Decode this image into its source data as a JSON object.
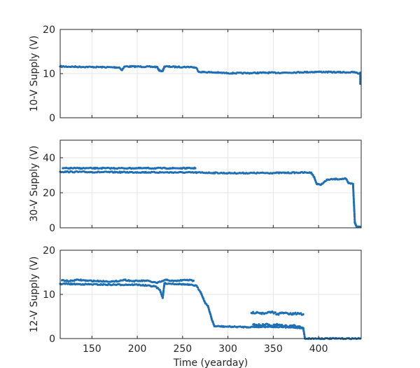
{
  "chart_data": [
    {
      "type": "scatter",
      "title": "",
      "xlabel": "",
      "ylabel": "10-V Supply (V)",
      "xlim": [
        115,
        447
      ],
      "ylim": [
        0,
        20
      ],
      "yticks": [
        "0",
        "10",
        "20"
      ],
      "grid": true,
      "color": "#1f6fb4",
      "series": [
        {
          "points": [
            [
              115,
              11.6
            ],
            [
              150,
              11.5
            ],
            [
              180,
              11.4
            ],
            [
              183,
              10.8
            ],
            [
              186,
              11.6
            ],
            [
              200,
              11.6
            ],
            [
              222,
              11.5
            ],
            [
              224,
              10.7
            ],
            [
              228,
              10.6
            ],
            [
              230,
              11.6
            ],
            [
              245,
              11.5
            ],
            [
              260,
              11.5
            ],
            [
              265,
              11.3
            ],
            [
              268,
              10.4
            ],
            [
              280,
              10.3
            ],
            [
              290,
              10.2
            ],
            [
              300,
              10.1
            ],
            [
              320,
              10.1
            ],
            [
              340,
              10.2
            ],
            [
              360,
              10.2
            ],
            [
              380,
              10.3
            ],
            [
              400,
              10.4
            ],
            [
              420,
              10.3
            ],
            [
              440,
              10.3
            ],
            [
              444,
              10.0
            ],
            [
              446,
              10.2
            ],
            [
              446,
              7.7
            ]
          ]
        }
      ]
    },
    {
      "type": "scatter",
      "title": "",
      "xlabel": "",
      "ylabel": "30-V Supply (V)",
      "xlim": [
        115,
        447
      ],
      "ylim": [
        0,
        50
      ],
      "yticks": [
        "0",
        "20",
        "40"
      ],
      "grid": true,
      "color": "#1f6fb4",
      "series": [
        {
          "points": [
            [
              115,
              32
            ],
            [
              150,
              31.8
            ],
            [
              200,
              31.7
            ],
            [
              250,
              31.6
            ],
            [
              270,
              31.5
            ],
            [
              300,
              31.2
            ],
            [
              350,
              31.3
            ],
            [
              380,
              31.5
            ],
            [
              392,
              31.5
            ],
            [
              395,
              29
            ],
            [
              398,
              25
            ],
            [
              402,
              24.5
            ],
            [
              406,
              26
            ],
            [
              410,
              27.5
            ],
            [
              420,
              27.8
            ],
            [
              430,
              28
            ],
            [
              433,
              25.5
            ],
            [
              438,
              25
            ],
            [
              440,
              3
            ],
            [
              442,
              0.5
            ],
            [
              446,
              0.5
            ]
          ]
        },
        {
          "points": [
            [
              118,
              34
            ],
            [
              125,
              34
            ],
            [
              132,
              34
            ],
            [
              138,
              34
            ],
            [
              143,
              34
            ],
            [
              150,
              34
            ],
            [
              155,
              34
            ],
            [
              160,
              34
            ],
            [
              165,
              34
            ],
            [
              185,
              34
            ],
            [
              190,
              34
            ],
            [
              195,
              34
            ],
            [
              200,
              34
            ],
            [
              205,
              34
            ],
            [
              231,
              34
            ],
            [
              236,
              34
            ],
            [
              240,
              34
            ],
            [
              250,
              34
            ],
            [
              255,
              34
            ],
            [
              260,
              34
            ],
            [
              264,
              34
            ]
          ]
        }
      ]
    },
    {
      "type": "scatter",
      "title": "",
      "xlabel": "Time (yearday)",
      "ylabel": "12-V Supply (V)",
      "xlim": [
        115,
        447
      ],
      "ylim": [
        0,
        20
      ],
      "xticks": [
        "150",
        "200",
        "250",
        "300",
        "350",
        "400"
      ],
      "yticks": [
        "0",
        "10",
        "20"
      ],
      "grid": true,
      "color": "#1f6fb4",
      "series": [
        {
          "points": [
            [
              115,
              12.4
            ],
            [
              140,
              12.3
            ],
            [
              170,
              12.2
            ],
            [
              200,
              12.2
            ],
            [
              220,
              11.8
            ],
            [
              225,
              11
            ],
            [
              228,
              9.2
            ],
            [
              230,
              12.5
            ],
            [
              250,
              12.3
            ],
            [
              265,
              12
            ],
            [
              270,
              10.5
            ],
            [
              275,
              8
            ],
            [
              278,
              7.4
            ],
            [
              282,
              4.5
            ],
            [
              285,
              2.8
            ],
            [
              300,
              2.7
            ],
            [
              320,
              2.6
            ],
            [
              345,
              2.7
            ],
            [
              360,
              2.6
            ],
            [
              383,
              2.4
            ],
            [
              385,
              0
            ],
            [
              400,
              0
            ],
            [
              420,
              0
            ],
            [
              446,
              0
            ]
          ]
        },
        {
          "points": [
            [
              117,
              13.2
            ],
            [
              125,
              13
            ],
            [
              135,
              13.3
            ],
            [
              145,
              13.1
            ],
            [
              160,
              13
            ],
            [
              175,
              12.9
            ],
            [
              186,
              13.3
            ],
            [
              195,
              13
            ],
            [
              210,
              13.1
            ],
            [
              222,
              12.6
            ],
            [
              232,
              13.3
            ],
            [
              240,
              13
            ],
            [
              255,
              13.3
            ],
            [
              262,
              13.1
            ]
          ]
        },
        {
          "points": [
            [
              326,
              5.8
            ],
            [
              332,
              6
            ],
            [
              340,
              5.6
            ],
            [
              348,
              6
            ],
            [
              355,
              5.6
            ],
            [
              362,
              5.8
            ],
            [
              370,
              5.5
            ],
            [
              378,
              5.7
            ],
            [
              383,
              5.5
            ]
          ]
        },
        {
          "points": [
            [
              328,
              3.2
            ],
            [
              336,
              3.0
            ],
            [
              342,
              3.3
            ],
            [
              348,
              2.9
            ],
            [
              355,
              3.1
            ],
            [
              362,
              2.8
            ],
            [
              372,
              2.9
            ],
            [
              380,
              2.6
            ]
          ]
        }
      ]
    }
  ]
}
